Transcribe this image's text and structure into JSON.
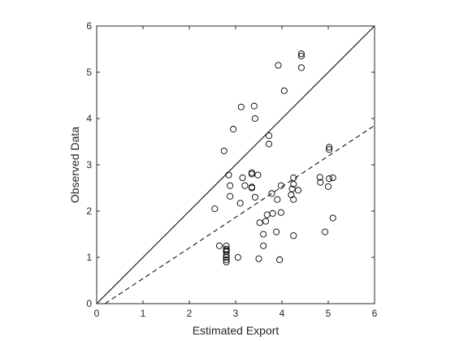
{
  "chart_data": {
    "type": "scatter",
    "title": "",
    "xlabel": "Estimated Export",
    "ylabel": "Observed Data",
    "xlim": [
      0,
      6
    ],
    "ylim": [
      0,
      6
    ],
    "xticks": [
      "0",
      "1",
      "2",
      "3",
      "4",
      "5",
      "6"
    ],
    "yticks": [
      "0",
      "1",
      "2",
      "3",
      "4",
      "5",
      "6"
    ],
    "grid": false,
    "legend": "none",
    "colors": {
      "axes": "#262626",
      "markers": "#000000",
      "background": "#ffffff"
    },
    "series": [
      {
        "marker": "open-circle",
        "points": [
          [
            2.55,
            2.05
          ],
          [
            2.65,
            1.25
          ],
          [
            2.75,
            3.3
          ],
          [
            2.8,
            1.25
          ],
          [
            2.8,
            1.18
          ],
          [
            2.8,
            1.15
          ],
          [
            2.8,
            1.12
          ],
          [
            2.8,
            1.05
          ],
          [
            2.8,
            1.0
          ],
          [
            2.8,
            0.95
          ],
          [
            2.8,
            0.9
          ],
          [
            2.85,
            2.78
          ],
          [
            2.88,
            2.55
          ],
          [
            2.88,
            2.32
          ],
          [
            2.95,
            3.77
          ],
          [
            3.05,
            1.0
          ],
          [
            3.1,
            2.17
          ],
          [
            3.12,
            4.25
          ],
          [
            3.15,
            2.72
          ],
          [
            3.2,
            2.55
          ],
          [
            3.35,
            2.83
          ],
          [
            3.35,
            2.8
          ],
          [
            3.35,
            2.52
          ],
          [
            3.35,
            2.5
          ],
          [
            3.4,
            4.27
          ],
          [
            3.42,
            4.0
          ],
          [
            3.42,
            2.3
          ],
          [
            3.48,
            2.78
          ],
          [
            3.5,
            0.97
          ],
          [
            3.52,
            1.75
          ],
          [
            3.6,
            1.25
          ],
          [
            3.6,
            1.5
          ],
          [
            3.65,
            1.78
          ],
          [
            3.68,
            1.92
          ],
          [
            3.72,
            3.63
          ],
          [
            3.72,
            3.45
          ],
          [
            3.78,
            2.38
          ],
          [
            3.8,
            1.95
          ],
          [
            3.88,
            1.55
          ],
          [
            3.9,
            2.25
          ],
          [
            3.92,
            5.15
          ],
          [
            3.95,
            0.95
          ],
          [
            3.98,
            1.97
          ],
          [
            3.98,
            2.55
          ],
          [
            4.05,
            4.6
          ],
          [
            4.2,
            2.35
          ],
          [
            4.22,
            2.48
          ],
          [
            4.25,
            2.72
          ],
          [
            4.25,
            2.58
          ],
          [
            4.25,
            2.25
          ],
          [
            4.25,
            1.47
          ],
          [
            4.35,
            2.45
          ],
          [
            4.42,
            5.4
          ],
          [
            4.42,
            5.35
          ],
          [
            4.42,
            5.1
          ],
          [
            4.82,
            2.73
          ],
          [
            4.83,
            2.62
          ],
          [
            4.93,
            1.55
          ],
          [
            5.0,
            2.53
          ],
          [
            5.02,
            3.38
          ],
          [
            5.02,
            3.33
          ],
          [
            5.02,
            2.7
          ],
          [
            5.1,
            2.72
          ],
          [
            5.1,
            1.85
          ]
        ]
      }
    ],
    "reference_lines": [
      {
        "style": "solid",
        "points": [
          [
            0,
            0
          ],
          [
            6,
            6
          ]
        ]
      },
      {
        "style": "dashed",
        "points": [
          [
            0.18,
            0
          ],
          [
            6,
            3.85
          ]
        ]
      }
    ]
  }
}
